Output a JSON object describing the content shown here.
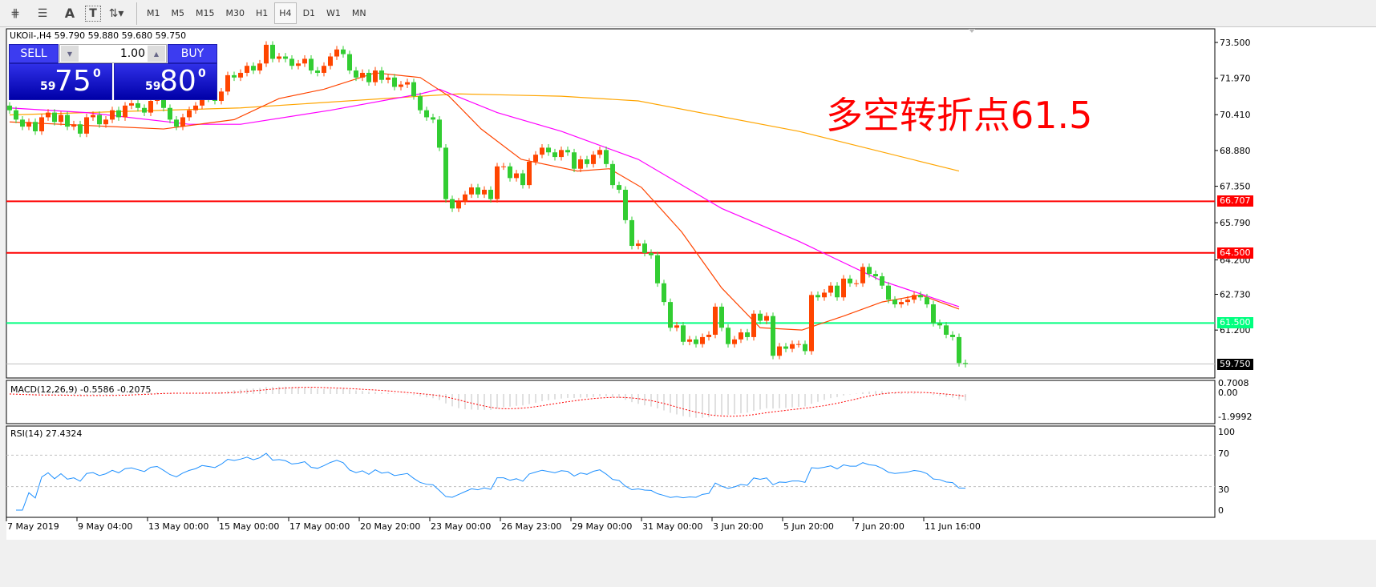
{
  "toolbar": {
    "icons": [
      "elliott-wave-icon",
      "fibonacci-icon",
      "text-icon",
      "text-label-icon",
      "arrows-icon"
    ],
    "icon_labels": [
      "A",
      "T"
    ],
    "timeframes": [
      "M1",
      "M5",
      "M15",
      "M30",
      "H1",
      "H4",
      "D1",
      "W1",
      "MN"
    ],
    "active_timeframe": "H4"
  },
  "chart": {
    "symbol_line": "UKOil-,H4  59.790 59.880 59.680 59.750",
    "annotation": "多空转折点61.5",
    "colors": {
      "bull": "#ff4500",
      "bear": "#32cd32",
      "ma_fast": "#ff4500",
      "ma_mid": "#ff00ff",
      "ma_slow": "#ffa500",
      "resistance": "#ff0000",
      "support": "#00ff7f"
    },
    "price_ticks": [
      "73.500",
      "71.970",
      "70.410",
      "68.880",
      "67.350",
      "65.790",
      "64.200",
      "62.730",
      "61.200"
    ],
    "price_min": 59.2,
    "price_max": 74.0,
    "levels": [
      {
        "label": "66.707",
        "value": 66.707,
        "color": "#ff0000"
      },
      {
        "label": "64.500",
        "value": 64.5,
        "color": "#ff0000"
      },
      {
        "label": "61.500",
        "value": 61.5,
        "color": "#00ff7f"
      }
    ],
    "current_price": {
      "label": "59.750",
      "value": 59.75
    },
    "first_open": 70.8,
    "closes": [
      70.6,
      70.2,
      69.9,
      70.1,
      69.7,
      70.3,
      70.5,
      70.1,
      70.4,
      69.9,
      70.0,
      69.6,
      70.3,
      70.4,
      70.0,
      70.2,
      70.6,
      70.3,
      70.8,
      70.9,
      70.7,
      70.5,
      71.0,
      71.1,
      70.7,
      70.2,
      69.9,
      70.3,
      70.6,
      70.8,
      71.2,
      71.1,
      71.0,
      71.4,
      72.1,
      72.0,
      72.2,
      72.5,
      72.3,
      72.6,
      73.4,
      72.8,
      72.9,
      72.8,
      72.5,
      72.6,
      72.8,
      72.3,
      72.2,
      72.5,
      72.9,
      73.2,
      73.0,
      72.3,
      72.0,
      72.2,
      71.8,
      72.3,
      71.9,
      72.0,
      71.6,
      71.7,
      71.8,
      71.2,
      70.6,
      70.3,
      70.2,
      69.0,
      66.8,
      66.4,
      66.7,
      67.0,
      67.3,
      67.0,
      67.2,
      66.8,
      68.2,
      68.2,
      67.7,
      67.9,
      67.4,
      68.4,
      68.7,
      69.0,
      68.8,
      68.6,
      68.9,
      68.8,
      68.1,
      68.5,
      68.3,
      68.7,
      68.9,
      68.3,
      67.4,
      67.2,
      65.9,
      64.8,
      64.9,
      64.5,
      64.4,
      63.2,
      62.4,
      61.3,
      61.4,
      60.7,
      60.8,
      60.6,
      60.9,
      61.0,
      62.2,
      61.3,
      60.6,
      60.8,
      61.1,
      60.9,
      61.9,
      61.6,
      61.8,
      60.1,
      60.5,
      60.4,
      60.6,
      60.6,
      60.3,
      62.7,
      62.6,
      62.8,
      63.1,
      62.6,
      63.4,
      63.2,
      63.2,
      63.9,
      63.6,
      63.5,
      63.1,
      62.5,
      62.3,
      62.4,
      62.5,
      62.7,
      62.6,
      62.3,
      61.5,
      61.4,
      61.0,
      60.9,
      59.79,
      59.75
    ],
    "ma_lines": [
      {
        "key": "ma_slow",
        "points": [
          [
            0,
            70.4
          ],
          [
            36,
            70.7
          ],
          [
            64,
            71.2
          ],
          [
            70,
            71.3
          ],
          [
            86,
            71.2
          ],
          [
            98,
            71.0
          ],
          [
            123,
            69.7
          ],
          [
            148,
            68.0
          ]
        ]
      },
      {
        "key": "ma_mid",
        "points": [
          [
            0,
            70.7
          ],
          [
            12,
            70.5
          ],
          [
            28,
            70.0
          ],
          [
            36,
            70.0
          ],
          [
            50,
            70.6
          ],
          [
            64,
            71.3
          ],
          [
            67,
            71.5
          ],
          [
            76,
            70.5
          ],
          [
            86,
            69.7
          ],
          [
            98,
            68.5
          ],
          [
            111,
            66.4
          ],
          [
            123,
            65.0
          ],
          [
            136,
            63.3
          ],
          [
            148,
            62.2
          ]
        ]
      },
      {
        "key": "ma_fast",
        "points": [
          [
            0,
            70.1
          ],
          [
            24,
            69.8
          ],
          [
            35,
            70.2
          ],
          [
            42,
            71.1
          ],
          [
            49,
            71.5
          ],
          [
            57,
            72.2
          ],
          [
            64,
            72.0
          ],
          [
            68.5,
            71.2
          ],
          [
            73.5,
            69.8
          ],
          [
            79.75,
            68.5
          ],
          [
            88.5,
            68.0
          ],
          [
            93.5,
            68.1
          ],
          [
            98.5,
            67.3
          ],
          [
            104.75,
            65.4
          ],
          [
            111,
            63.0
          ],
          [
            117,
            61.3
          ],
          [
            123.5,
            61.2
          ],
          [
            130,
            61.8
          ],
          [
            136,
            62.4
          ],
          [
            142,
            62.7
          ],
          [
            148,
            62.1
          ]
        ]
      }
    ]
  },
  "macd": {
    "label": "MACD(12,26,9) -0.5586 -0.2075",
    "ticks": [
      "0.7008",
      "0.00",
      "-1.9992"
    ],
    "max": 0.7008,
    "min": -1.9992
  },
  "rsi": {
    "label": "RSI(14) 27.4324",
    "ticks": [
      "100",
      "70",
      "30",
      "0"
    ],
    "levels": [
      70,
      30
    ]
  },
  "time_axis": [
    "7 May 2019",
    "9 May 04:00",
    "13 May 00:00",
    "15 May 00:00",
    "17 May 00:00",
    "20 May 20:00",
    "23 May 00:00",
    "26 May 23:00",
    "29 May 00:00",
    "31 May 00:00",
    "3 Jun 20:00",
    "5 Jun 20:00",
    "7 Jun 20:00",
    "11 Jun 16:00"
  ],
  "trade_panel": {
    "sell_label": "SELL",
    "buy_label": "BUY",
    "lot": "1.00",
    "sell_big": "59",
    "sell_main": "75",
    "sell_sup": "0",
    "buy_big": "59",
    "buy_main": "80",
    "buy_sup": "0"
  }
}
